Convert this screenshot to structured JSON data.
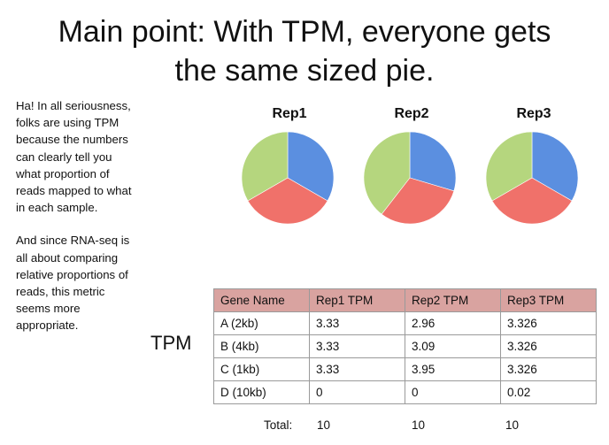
{
  "title_line1": "Main point: With TPM, everyone gets",
  "title_line2": "the same sized pie.",
  "side_text": {
    "para1": "Ha! In all seriousness,\nfolks are using TPM\nbecause the numbers\ncan clearly tell you\nwhat proportion of\nreads mapped to what\nin each sample.",
    "para2": "And since RNA-seq is\nall about comparing\nrelative proportions of\nreads, this metric\nseems more\nappropriate."
  },
  "tpm_label": "TPM",
  "colors": {
    "blue": "#5b8fe0",
    "red": "#f0716a",
    "green": "#b5d67e"
  },
  "table": {
    "headers": [
      "Gene Name",
      "Rep1 TPM",
      "Rep2 TPM",
      "Rep3 TPM"
    ],
    "rows": [
      [
        "A (2kb)",
        "3.33",
        "2.96",
        "3.326"
      ],
      [
        "B (4kb)",
        "3.33",
        "3.09",
        "3.326"
      ],
      [
        "C (1kb)",
        "3.33",
        "3.95",
        "3.326"
      ],
      [
        "D (10kb)",
        "0",
        "0",
        "0.02"
      ]
    ],
    "total_label": "Total:",
    "totals": [
      "10",
      "10",
      "10"
    ]
  },
  "chart_data": [
    {
      "type": "pie",
      "title": "Rep1",
      "categories": [
        "A (2kb)",
        "B (4kb)",
        "C (1kb)"
      ],
      "values": [
        3.33,
        3.33,
        3.33
      ]
    },
    {
      "type": "pie",
      "title": "Rep2",
      "categories": [
        "A (2kb)",
        "B (4kb)",
        "C (1kb)"
      ],
      "values": [
        2.96,
        3.09,
        3.95
      ]
    },
    {
      "type": "pie",
      "title": "Rep3",
      "categories": [
        "A (2kb)",
        "B (4kb)",
        "C (1kb)"
      ],
      "values": [
        3.326,
        3.326,
        3.326
      ]
    }
  ]
}
